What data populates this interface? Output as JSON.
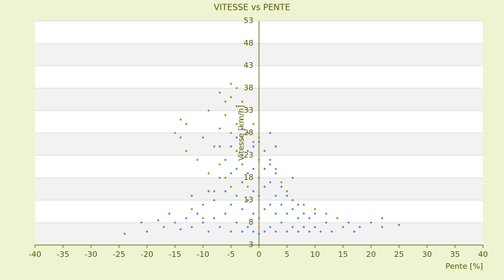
{
  "chart_data": {
    "type": "scatter",
    "title": "VITESSE vs PENTE",
    "x_label": "Pente [%]",
    "y_label": "Vitesse [km/h]",
    "xlim": [
      -40,
      40
    ],
    "xticks": [
      -40,
      -35,
      -30,
      -25,
      -20,
      -15,
      -10,
      -5,
      0,
      5,
      10,
      15,
      20,
      25,
      30,
      35,
      40
    ],
    "ylim": [
      3,
      53
    ],
    "yticks": [
      3,
      8,
      13,
      18,
      23,
      28,
      33,
      38,
      43,
      48,
      53
    ],
    "grid": true,
    "series": [
      {
        "color": "#3a88d8",
        "x": [
          -24,
          -21,
          -20,
          -18,
          -17,
          -15,
          -14,
          -13,
          -12,
          -11,
          -10,
          -10,
          -9,
          -9,
          -8,
          -8,
          -7,
          -7,
          -6,
          -6,
          -6,
          -5,
          -5,
          -5,
          -5,
          -4,
          -4,
          -4,
          -4,
          -3,
          -3,
          -3,
          -3,
          -3,
          -2,
          -2,
          -2,
          -2,
          -2,
          -1,
          -1,
          -1,
          -1,
          -1,
          0,
          0,
          0,
          0,
          0,
          0,
          1,
          1,
          1,
          1,
          1,
          2,
          2,
          2,
          2,
          3,
          3,
          3,
          3,
          4,
          4,
          4,
          5,
          5,
          5,
          6,
          6,
          6,
          7,
          7,
          7,
          8,
          8,
          9,
          9,
          10,
          10,
          11,
          12,
          13,
          14,
          15,
          16,
          17,
          18,
          20,
          22,
          22,
          25,
          -16,
          -12,
          -7,
          3,
          6,
          2
        ],
        "values": [
          5.5,
          8,
          6,
          8.5,
          7,
          8,
          6.5,
          9,
          7,
          10,
          8,
          12,
          6,
          15,
          9,
          13,
          7,
          18,
          10,
          15,
          22,
          6,
          12,
          19,
          25,
          8,
          14,
          20,
          27,
          6,
          11,
          17,
          23,
          29,
          7,
          13,
          19,
          24,
          28,
          6,
          10,
          15,
          20,
          25,
          5.5,
          9,
          14,
          18,
          22,
          26,
          6,
          11,
          16,
          20,
          24,
          7,
          12,
          17,
          21,
          6,
          10,
          14,
          19,
          8,
          12,
          16,
          6,
          10,
          14,
          7,
          11,
          13,
          6,
          9,
          12,
          7,
          10,
          6,
          9,
          7,
          10,
          6,
          8,
          6,
          9,
          7,
          8,
          6,
          7,
          8,
          7,
          9,
          7.5,
          10,
          14,
          25,
          25,
          18,
          28
        ]
      },
      {
        "color": "#9a9400",
        "x": [
          -14,
          -13,
          -14,
          -13,
          -11,
          -10,
          -9,
          -9,
          -8,
          -8,
          -7,
          -7,
          -7,
          -6,
          -6,
          -6,
          -5,
          -5,
          -5,
          -5,
          -4,
          -4,
          -4,
          -4,
          -3,
          -3,
          -3,
          -3,
          -2,
          -2,
          -2,
          -1,
          -1,
          0,
          1,
          2,
          3,
          4,
          5,
          6,
          8,
          10,
          12,
          14,
          -12,
          -10,
          -15
        ],
        "values": [
          31,
          30,
          27,
          24,
          22,
          27,
          33,
          19,
          25,
          15,
          37,
          29,
          21,
          35,
          32,
          18,
          39,
          36,
          28,
          16,
          38,
          34,
          30,
          24,
          35,
          31,
          27,
          21,
          33,
          28,
          16,
          30,
          26,
          27,
          24,
          22,
          20,
          17,
          15,
          13,
          12,
          11,
          10,
          9,
          11,
          9,
          28
        ]
      }
    ]
  }
}
